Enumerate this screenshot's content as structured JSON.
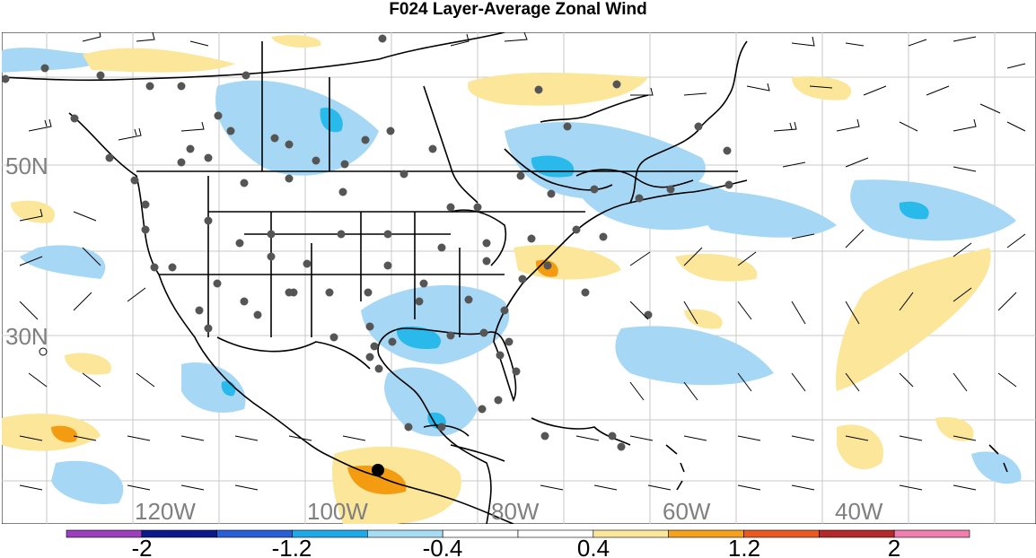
{
  "title": "F024 Layer-Average Zonal Wind",
  "map": {
    "lat_labels": [
      "50N",
      "30N"
    ],
    "lon_labels": [
      "120W",
      "100W",
      "80W",
      "60W",
      "40W"
    ],
    "colors": {
      "blue_light": "#a6d8f5",
      "blue_mid": "#29b9ea",
      "yellow": "#fbe699",
      "orange": "#f39c12",
      "grid": "#c8c8c8",
      "outline": "#000000",
      "station": "#555555"
    }
  },
  "colorbar": {
    "labels": [
      "-2",
      "-1.2",
      "-0.4",
      "0.4",
      "1.2",
      "2"
    ],
    "colors": [
      "#9b3fbf",
      "#0a1a8c",
      "#2a5ed8",
      "#1fa9e8",
      "#a7dcf5",
      "#ffffff",
      "#ffffff",
      "#fbe699",
      "#f5a11e",
      "#ea5a20",
      "#b4282a",
      "#f07fb0"
    ]
  }
}
